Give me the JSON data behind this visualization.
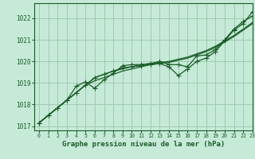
{
  "background_color": "#c6ead8",
  "grid_color": "#9ecbb0",
  "line_color": "#1a5c28",
  "xlabel": "Graphe pression niveau de la mer (hPa)",
  "xlim": [
    -0.5,
    23
  ],
  "ylim": [
    1016.8,
    1022.7
  ],
  "yticks": [
    1017,
    1018,
    1019,
    1020,
    1021,
    1022
  ],
  "xticks": [
    0,
    1,
    2,
    3,
    4,
    5,
    6,
    7,
    8,
    9,
    10,
    11,
    12,
    13,
    14,
    15,
    16,
    17,
    18,
    19,
    20,
    21,
    22,
    23
  ],
  "series_main": [
    1017.15,
    1017.5,
    1017.85,
    1018.2,
    1018.55,
    1018.9,
    1019.25,
    1019.4,
    1019.55,
    1019.7,
    1019.75,
    1019.8,
    1019.85,
    1019.9,
    1019.75,
    1019.35,
    1019.65,
    1020.0,
    1020.15,
    1020.45,
    1020.95,
    1021.45,
    1021.75,
    1022.3
  ],
  "series_upper": [
    1017.15,
    1017.5,
    1017.85,
    1018.2,
    1018.85,
    1019.05,
    1018.75,
    1019.15,
    1019.45,
    1019.8,
    1019.85,
    1019.85,
    1019.9,
    1020.0,
    1019.85,
    1019.85,
    1019.75,
    1020.25,
    1020.3,
    1020.55,
    1021.0,
    1021.5,
    1021.85,
    1022.1
  ],
  "series_trend1": [
    1017.15,
    1017.5,
    1017.85,
    1018.2,
    1018.55,
    1018.9,
    1019.25,
    1019.4,
    1019.55,
    1019.65,
    1019.75,
    1019.85,
    1019.9,
    1019.95,
    1020.0,
    1020.1,
    1020.2,
    1020.35,
    1020.5,
    1020.7,
    1020.95,
    1021.2,
    1021.5,
    1021.8
  ],
  "series_trend2": [
    1017.15,
    1017.5,
    1017.85,
    1018.2,
    1018.55,
    1018.9,
    1019.1,
    1019.25,
    1019.4,
    1019.55,
    1019.65,
    1019.75,
    1019.85,
    1019.9,
    1019.95,
    1020.05,
    1020.15,
    1020.3,
    1020.45,
    1020.65,
    1020.9,
    1021.15,
    1021.45,
    1021.75
  ],
  "marker_style": "+",
  "marker_size": 5
}
